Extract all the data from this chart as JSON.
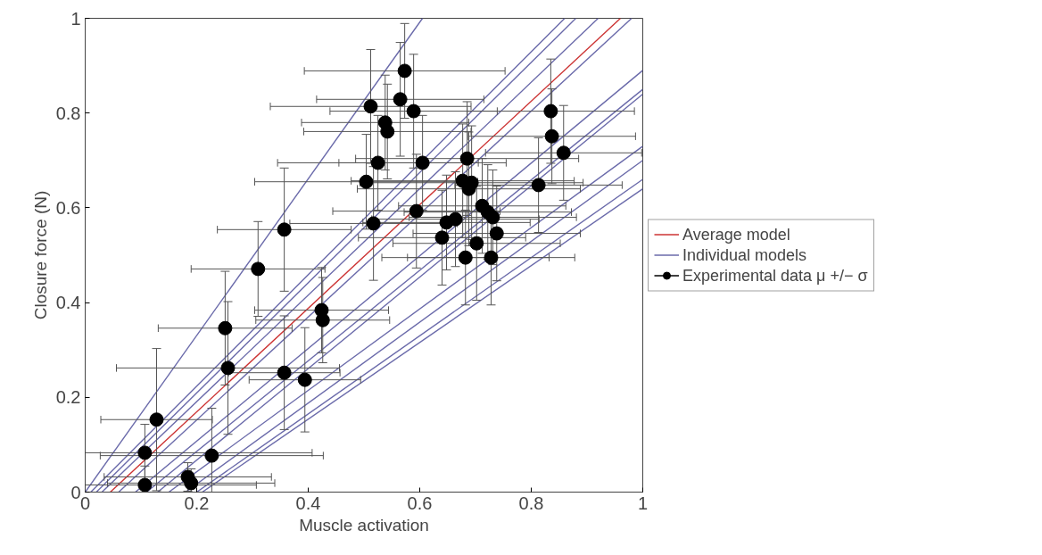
{
  "chart_data": {
    "type": "scatter",
    "xlabel": "Muscle activation",
    "ylabel": "Closure force (N)",
    "xlim": [
      0,
      1
    ],
    "ylim": [
      0,
      1
    ],
    "xticks": [
      0,
      0.2,
      0.4,
      0.6,
      0.8,
      1
    ],
    "yticks": [
      0,
      0.2,
      0.4,
      0.6,
      0.8,
      1
    ],
    "grid": false,
    "legend": "right",
    "marker": "circle",
    "series": [
      {
        "name": "Average model",
        "type": "line",
        "marker": "none",
        "color": "#cc3333",
        "x": [
          0.045,
          0.96
        ],
        "values": [
          0,
          1
        ]
      },
      {
        "name": "Individual models",
        "type": "line",
        "marker": "none",
        "color": "#6a6aaa",
        "x": [
          0,
          0.605
        ],
        "values": [
          0,
          1
        ]
      },
      {
        "type": "line",
        "marker": "none",
        "color": "#6a6aaa",
        "x": [
          0.01,
          0.86
        ],
        "values": [
          0,
          1
        ]
      },
      {
        "type": "line",
        "marker": "none",
        "color": "#6a6aaa",
        "x": [
          0.02,
          0.88
        ],
        "values": [
          0,
          1
        ]
      },
      {
        "type": "line",
        "marker": "none",
        "color": "#6a6aaa",
        "x": [
          0.03,
          0.92
        ],
        "values": [
          0,
          1
        ]
      },
      {
        "type": "line",
        "marker": "none",
        "color": "#6a6aaa",
        "x": [
          0.06,
          0.98
        ],
        "values": [
          0,
          1
        ]
      },
      {
        "type": "line",
        "marker": "none",
        "color": "#6a6aaa",
        "x": [
          0.09,
          1
        ],
        "values": [
          0,
          0.89
        ]
      },
      {
        "type": "line",
        "marker": "none",
        "color": "#6a6aaa",
        "x": [
          0.11,
          1
        ],
        "values": [
          0,
          0.85
        ]
      },
      {
        "type": "line",
        "marker": "none",
        "color": "#6a6aaa",
        "x": [
          0.13,
          1
        ],
        "values": [
          0,
          0.84
        ]
      },
      {
        "type": "line",
        "marker": "none",
        "color": "#6a6aaa",
        "x": [
          0.15,
          1
        ],
        "values": [
          0,
          0.73
        ]
      },
      {
        "type": "line",
        "marker": "none",
        "color": "#6a6aaa",
        "x": [
          0.18,
          1
        ],
        "values": [
          0,
          0.7
        ]
      },
      {
        "type": "line",
        "marker": "none",
        "color": "#6a6aaa",
        "x": [
          0.2,
          1
        ],
        "values": [
          0,
          0.66
        ]
      },
      {
        "type": "line",
        "marker": "none",
        "color": "#6a6aaa",
        "x": [
          0.21,
          1
        ],
        "values": [
          0,
          0.64
        ]
      },
      {
        "name": "Experimental data μ +/− σ",
        "color": "#000000",
        "x": [
          0.107,
          0.107,
          0.128,
          0.184,
          0.19,
          0.227,
          0.251,
          0.256,
          0.357,
          0.394,
          0.424,
          0.426,
          0.31,
          0.357,
          0.573,
          0.512,
          0.565,
          0.589,
          0.538,
          0.542,
          0.525,
          0.605,
          0.504,
          0.685,
          0.677,
          0.693,
          0.688,
          0.813,
          0.835,
          0.837,
          0.858,
          0.517,
          0.594,
          0.712,
          0.722,
          0.731,
          0.648,
          0.664,
          0.64,
          0.738,
          0.702,
          0.682,
          0.728
        ],
        "values": [
          0.083,
          0.015,
          0.153,
          0.032,
          0.019,
          0.077,
          0.346,
          0.262,
          0.252,
          0.237,
          0.384,
          0.363,
          0.471,
          0.554,
          0.889,
          0.814,
          0.829,
          0.804,
          0.78,
          0.761,
          0.695,
          0.695,
          0.655,
          0.704,
          0.657,
          0.653,
          0.64,
          0.648,
          0.804,
          0.751,
          0.716,
          0.567,
          0.593,
          0.604,
          0.591,
          0.58,
          0.569,
          0.576,
          0.537,
          0.546,
          0.525,
          0.495,
          0.495
        ],
        "errors": [
          0.06,
          0.04,
          0.15,
          0.03,
          0.03,
          0.1,
          0.12,
          0.14,
          0.12,
          0.11,
          0.09,
          0.09,
          0.1,
          0.13,
          0.1,
          0.12,
          0.12,
          0.12,
          0.1,
          0.1,
          0.1,
          0.1,
          0.1,
          0.12,
          0.12,
          0.12,
          0.12,
          0.1,
          0.11,
          0.1,
          0.1,
          0.12,
          0.12,
          0.1,
          0.1,
          0.1,
          0.1,
          0.1,
          0.1,
          0.1,
          0.12,
          0.1,
          0.1
        ],
        "xerrors": [
          0.3,
          0.2,
          0.1,
          0.15,
          0.15,
          0.2,
          0.12,
          0.2,
          0.1,
          0.1,
          0.12,
          0.12,
          0.12,
          0.12,
          0.18,
          0.18,
          0.15,
          0.15,
          0.15,
          0.15,
          0.18,
          0.15,
          0.2,
          0.2,
          0.2,
          0.2,
          0.2,
          0.15,
          0.15,
          0.15,
          0.14,
          0.15,
          0.15,
          0.15,
          0.15,
          0.15,
          0.15,
          0.15,
          0.15,
          0.15,
          0.15,
          0.15,
          0.15
        ]
      }
    ]
  }
}
